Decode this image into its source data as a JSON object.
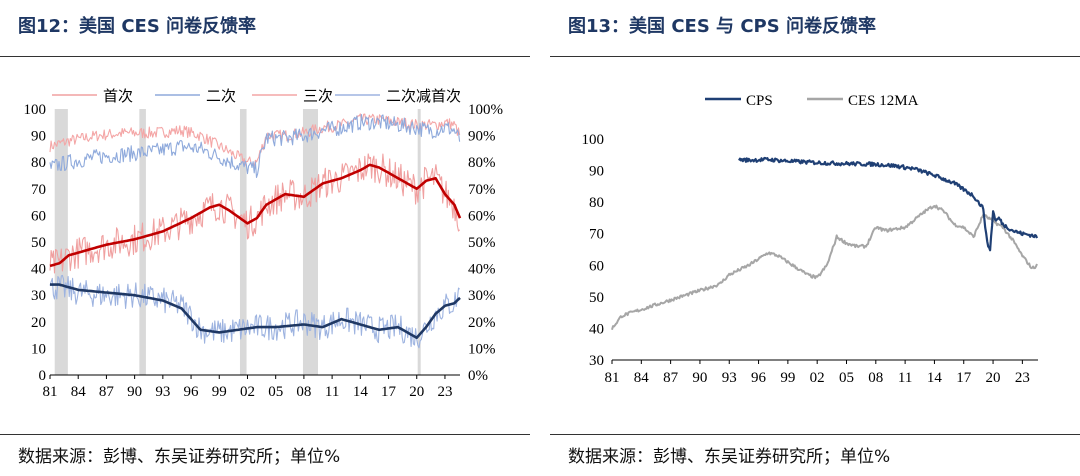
{
  "left_panel": {
    "title": "图12：美国 CES 问卷反馈率",
    "source": "数据来源：彭博、东吴证券研究所；单位%"
  },
  "right_panel": {
    "title": "图13：美国 CES 与 CPS 问卷反馈率",
    "source": "数据来源：彭博、东吴证券研究所；单位%"
  },
  "colors": {
    "title": "#1f3864",
    "first_raw": "#f0a0a0",
    "first_ma": "#c00000",
    "second_raw": "#8faadc",
    "second_ma": "#1f3864",
    "third_raw": "#f4a6a6",
    "diff_raw": "#9db3e0",
    "recession": "#d9d9d9",
    "cps": "#1f3f74",
    "ces12": "#a6a6a6"
  },
  "chart_data": [
    {
      "type": "line",
      "title": "美国 CES 问卷反馈率",
      "legend": [
        "首次",
        "二次",
        "三次",
        "二次减首次"
      ],
      "x_ticks": [
        "81",
        "84",
        "87",
        "90",
        "93",
        "96",
        "99",
        "02",
        "05",
        "08",
        "11",
        "14",
        "17",
        "20",
        "23"
      ],
      "x_tick_years": [
        1981,
        1984,
        1987,
        1990,
        1993,
        1996,
        1999,
        2002,
        2005,
        2008,
        2011,
        2014,
        2017,
        2020,
        2023
      ],
      "xlim": [
        1981,
        2024.6
      ],
      "ylim_left": [
        0,
        100
      ],
      "ylim_right": [
        0,
        100
      ],
      "yticks_left": [
        "0",
        "10",
        "20",
        "30",
        "40",
        "50",
        "60",
        "70",
        "80",
        "90",
        "100"
      ],
      "yticks_right": [
        "0%",
        "10%",
        "20%",
        "30%",
        "40%",
        "50%",
        "60%",
        "70%",
        "80%",
        "90%",
        "100%"
      ],
      "recessions": [
        [
          1981.5,
          1982.9
        ],
        [
          1990.5,
          1991.2
        ],
        [
          2001.2,
          2001.9
        ],
        [
          2007.9,
          2009.5
        ],
        [
          2020.1,
          2020.4
        ]
      ],
      "series": [
        {
          "name": "首次",
          "kind": "raw",
          "color_key": "first_raw",
          "noise": 6,
          "x": [
            1981,
            1982,
            1983,
            1985,
            1987,
            1990,
            1993,
            1996,
            1998,
            1999,
            2000,
            2002,
            2003,
            2004,
            2006,
            2008,
            2010,
            2012,
            2014,
            2015,
            2016,
            2017,
            2019,
            2020,
            2021,
            2022,
            2023,
            2024,
            2024.6
          ],
          "y": [
            41,
            42,
            45,
            47,
            49,
            51,
            54,
            59,
            63,
            64,
            62,
            57,
            59,
            64,
            68,
            67,
            72,
            74,
            77,
            79,
            78,
            76,
            72,
            70,
            73,
            74,
            68,
            64,
            58
          ]
        },
        {
          "name": "首次移动平均",
          "kind": "ma",
          "color_key": "first_ma",
          "noise": 0,
          "x": [
            1981,
            1982,
            1983,
            1985,
            1987,
            1990,
            1993,
            1996,
            1998,
            1999,
            2000,
            2002,
            2003,
            2004,
            2006,
            2008,
            2010,
            2012,
            2014,
            2015,
            2016,
            2017,
            2019,
            2020,
            2021,
            2022,
            2023,
            2024,
            2024.6
          ],
          "y": [
            41,
            42,
            45,
            47,
            49,
            51,
            54,
            59,
            63,
            64,
            62,
            57,
            59,
            64,
            68,
            67,
            72,
            74,
            77,
            79,
            78,
            76,
            72,
            70,
            73,
            74,
            68,
            64,
            59
          ]
        },
        {
          "name": "二次",
          "kind": "raw",
          "color_key": "second_raw",
          "noise": 3,
          "x": [
            1981,
            1983,
            1986,
            1989,
            1992,
            1995,
            1997,
            1999,
            2001,
            2002,
            2003,
            2004,
            2006,
            2008,
            2010,
            2012,
            2014,
            2016,
            2018,
            2020,
            2021,
            2022,
            2023,
            2024,
            2024.6
          ],
          "y": [
            78,
            80,
            82,
            83,
            84,
            86,
            85,
            82,
            79,
            78,
            77,
            89,
            89,
            90,
            92,
            93,
            95,
            95,
            94,
            93,
            92,
            92,
            93,
            92,
            88
          ]
        },
        {
          "name": "三次",
          "kind": "raw",
          "color_key": "third_raw",
          "noise": 2.2,
          "x": [
            1981,
            1983,
            1986,
            1989,
            1992,
            1995,
            1997,
            1999,
            2001,
            2002,
            2003,
            2004,
            2006,
            2008,
            2010,
            2012,
            2014,
            2016,
            2018,
            2020,
            2021,
            2022,
            2023,
            2024,
            2024.6
          ],
          "y": [
            86,
            88,
            90,
            91,
            91,
            92,
            90,
            86,
            82,
            80,
            80,
            90,
            90,
            91,
            93,
            94,
            96,
            96,
            95,
            94,
            94,
            94,
            95,
            94,
            90
          ]
        },
        {
          "name": "二次减首次",
          "kind": "raw",
          "color_key": "diff_raw",
          "noise": 5,
          "x": [
            1981,
            1982,
            1984,
            1987,
            1990,
            1993,
            1995,
            1996,
            1997,
            1999,
            2001,
            2003,
            2005,
            2008,
            2010,
            2012,
            2014,
            2016,
            2018,
            2020,
            2021,
            2022,
            2023,
            2024,
            2024.6
          ],
          "y": [
            33,
            33,
            31,
            30,
            30,
            28,
            26,
            22,
            17,
            16,
            17,
            18,
            18,
            20,
            18,
            21,
            19,
            17,
            18,
            14,
            18,
            23,
            26,
            27,
            32
          ]
        },
        {
          "name": "二次减首次移动平均",
          "kind": "ma",
          "color_key": "second_ma",
          "noise": 0,
          "x": [
            1981,
            1982,
            1984,
            1987,
            1990,
            1993,
            1995,
            1996,
            1997,
            1999,
            2001,
            2003,
            2005,
            2008,
            2010,
            2012,
            2014,
            2016,
            2018,
            2020,
            2021,
            2022,
            2023,
            2024,
            2024.6
          ],
          "y": [
            34,
            34,
            32,
            31,
            30,
            28,
            25,
            21,
            17,
            16,
            17,
            18,
            18,
            19,
            18,
            21,
            19,
            17,
            18,
            14,
            18,
            23,
            26,
            27,
            29
          ]
        }
      ]
    },
    {
      "type": "line",
      "title": "美国 CES 与 CPS 问卷反馈率",
      "legend": [
        "CPS",
        "CES 12MA"
      ],
      "x_ticks": [
        "81",
        "84",
        "87",
        "90",
        "93",
        "96",
        "99",
        "02",
        "05",
        "08",
        "11",
        "14",
        "17",
        "20",
        "23"
      ],
      "x_tick_years": [
        1981,
        1984,
        1987,
        1990,
        1993,
        1996,
        1999,
        2002,
        2005,
        2008,
        2011,
        2014,
        2017,
        2020,
        2023
      ],
      "xlim": [
        1981,
        2024.6
      ],
      "ylim": [
        30,
        100
      ],
      "yticks": [
        "30",
        "40",
        "50",
        "60",
        "70",
        "80",
        "90",
        "100"
      ],
      "series": [
        {
          "name": "CPS",
          "color_key": "cps",
          "x": [
            1994,
            1995,
            1997,
            1999,
            2002,
            2005,
            2008,
            2010,
            2012,
            2014,
            2016,
            2017,
            2018,
            2019,
            2019.4,
            2019.7,
            2020,
            2020.3,
            2020.6,
            2021,
            2022,
            2023,
            2024,
            2024.5
          ],
          "y": [
            93.5,
            93.3,
            93.5,
            93,
            92.5,
            92.2,
            92,
            91.5,
            90.5,
            88.5,
            86,
            84,
            82,
            78,
            67,
            65,
            77,
            74,
            75,
            73,
            71,
            70,
            69.5,
            69
          ]
        },
        {
          "name": "CES 12MA",
          "color_key": "ces12",
          "x": [
            1981,
            1982,
            1984,
            1986,
            1988,
            1990,
            1992,
            1993,
            1995,
            1997,
            1998,
            2000,
            2001,
            2002,
            2003,
            2004,
            2005,
            2006,
            2007,
            2008,
            2009,
            2011,
            2013,
            2014,
            2015,
            2016,
            2017,
            2018,
            2019,
            2020,
            2021,
            2022,
            2023,
            2024,
            2024.5
          ],
          "y": [
            40,
            44,
            46,
            48,
            50,
            52,
            54,
            57,
            60,
            64,
            63,
            59,
            57,
            56,
            60,
            69,
            67,
            66,
            66,
            72,
            71,
            72,
            77,
            79,
            77,
            73,
            72,
            69,
            76,
            74,
            72,
            68,
            63,
            59,
            60
          ]
        }
      ]
    }
  ]
}
